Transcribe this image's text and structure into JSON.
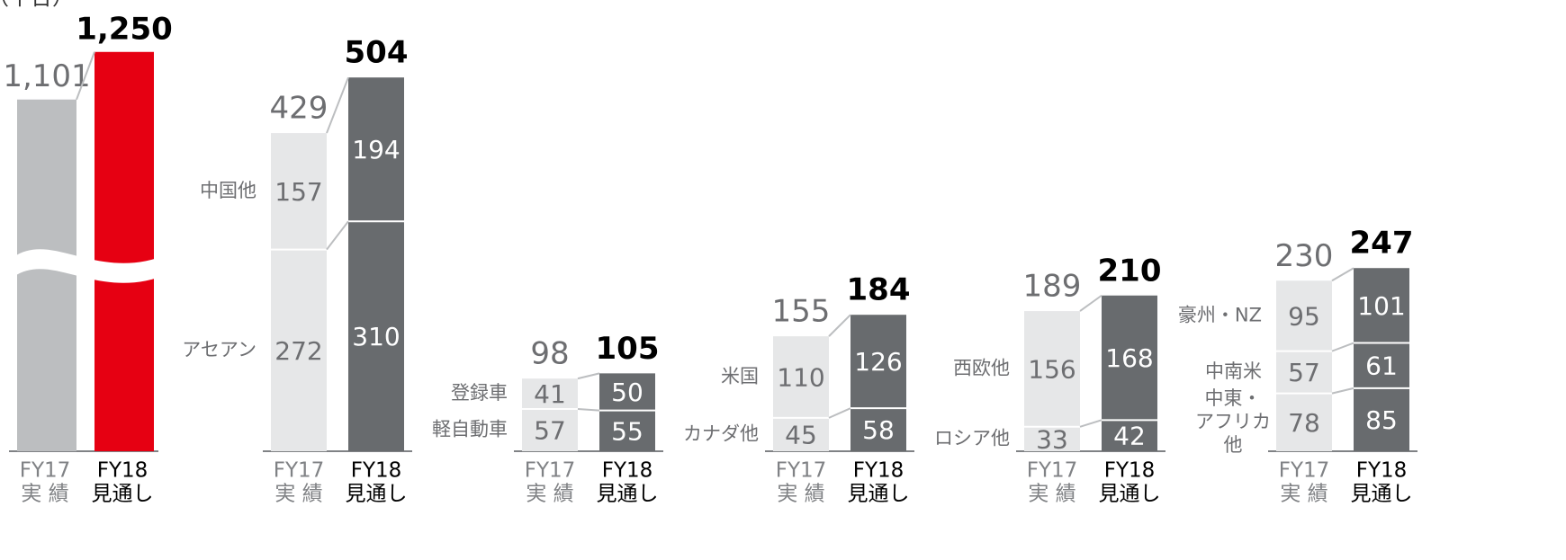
{
  "unit": "（千台）",
  "chart_data": [
    {
      "type": "bar",
      "categories": [
        [
          "FY17",
          "実 績"
        ],
        [
          "FY18",
          "見通し"
        ]
      ],
      "values": [
        1101,
        1250
      ],
      "value_labels": [
        "1,101",
        "1,250"
      ],
      "colors": [
        "#bcbec0",
        "#e60012"
      ],
      "ylim": [
        0,
        1300
      ],
      "axis_break": true
    },
    {
      "type": "stacked_bar",
      "categories": [
        [
          "FY17",
          "実 績"
        ],
        [
          "FY18",
          "見通し"
        ]
      ],
      "totals": [
        429,
        504
      ],
      "colors": [
        "#e6e7e8",
        "#686b6e"
      ],
      "ylim": [
        0,
        560
      ],
      "series": [
        {
          "name": [
            "中国他"
          ],
          "values": [
            157,
            194
          ]
        },
        {
          "name": [
            "アセアン"
          ],
          "values": [
            272,
            310
          ]
        }
      ]
    },
    {
      "type": "stacked_bar",
      "categories": [
        [
          "FY17",
          "実 績"
        ],
        [
          "FY18",
          "見通し"
        ]
      ],
      "totals": [
        98,
        105
      ],
      "colors": [
        "#e6e7e8",
        "#686b6e"
      ],
      "ylim": [
        0,
        560
      ],
      "series": [
        {
          "name": [
            "登録車"
          ],
          "values": [
            41,
            50
          ]
        },
        {
          "name": [
            "軽自動車"
          ],
          "values": [
            57,
            55
          ]
        }
      ]
    },
    {
      "type": "stacked_bar",
      "categories": [
        [
          "FY17",
          "実 績"
        ],
        [
          "FY18",
          "見通し"
        ]
      ],
      "totals": [
        155,
        184
      ],
      "colors": [
        "#e6e7e8",
        "#686b6e"
      ],
      "ylim": [
        0,
        560
      ],
      "series": [
        {
          "name": [
            "米国"
          ],
          "values": [
            110,
            126
          ]
        },
        {
          "name": [
            "カナダ他"
          ],
          "values": [
            45,
            58
          ]
        }
      ]
    },
    {
      "type": "stacked_bar",
      "categories": [
        [
          "FY17",
          "実 績"
        ],
        [
          "FY18",
          "見通し"
        ]
      ],
      "totals": [
        189,
        210
      ],
      "colors": [
        "#e6e7e8",
        "#686b6e"
      ],
      "ylim": [
        0,
        560
      ],
      "series": [
        {
          "name": [
            "西欧他"
          ],
          "values": [
            156,
            168
          ]
        },
        {
          "name": [
            "ロシア他"
          ],
          "values": [
            33,
            42
          ]
        }
      ]
    },
    {
      "type": "stacked_bar",
      "categories": [
        [
          "FY17",
          "実 績"
        ],
        [
          "FY18",
          "見通し"
        ]
      ],
      "totals": [
        230,
        247
      ],
      "colors": [
        "#e6e7e8",
        "#686b6e"
      ],
      "ylim": [
        0,
        560
      ],
      "series": [
        {
          "name": [
            "豪州・NZ"
          ],
          "values": [
            95,
            101
          ]
        },
        {
          "name": [
            "中南米"
          ],
          "values": [
            57,
            61
          ]
        },
        {
          "name": [
            "中東・",
            "アフリカ",
            "他"
          ],
          "values": [
            78,
            85
          ]
        }
      ]
    }
  ]
}
